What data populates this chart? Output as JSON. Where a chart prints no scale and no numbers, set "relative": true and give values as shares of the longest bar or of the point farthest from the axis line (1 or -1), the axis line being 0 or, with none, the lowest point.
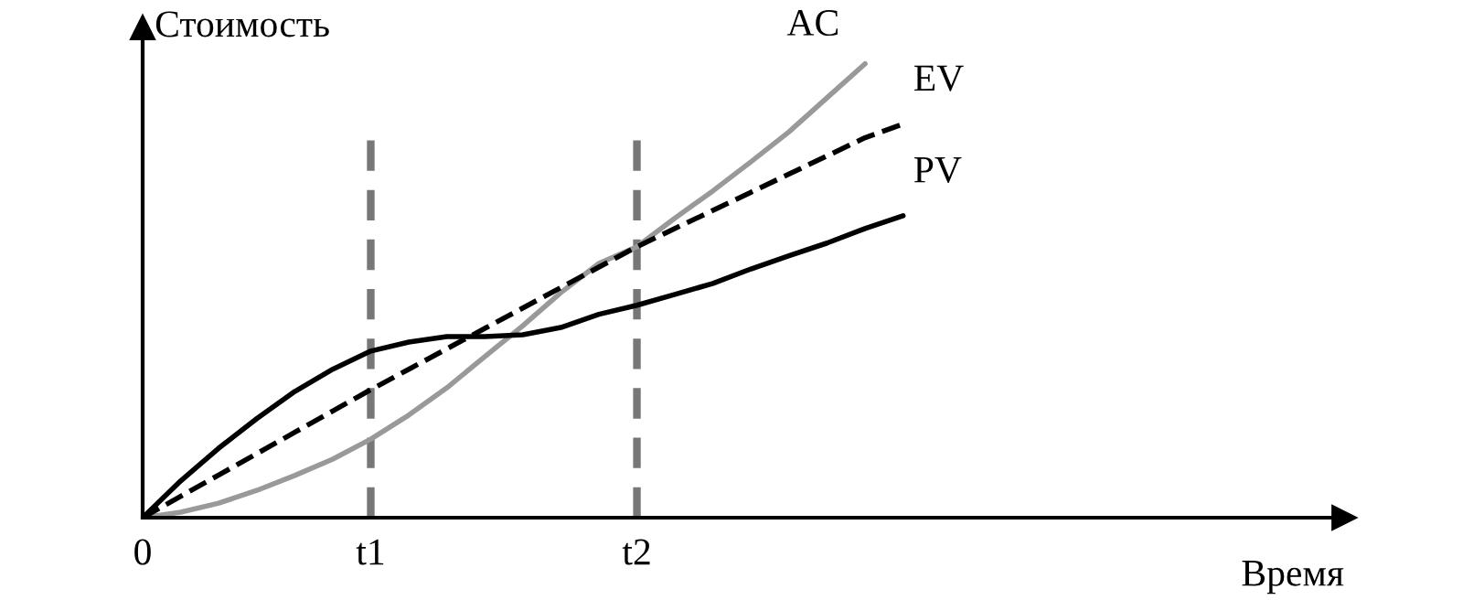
{
  "chart_data": {
    "type": "line",
    "relative": true,
    "xlabel": "Время",
    "ylabel": "Стоимость",
    "categories": [
      "0",
      null,
      null,
      null,
      null,
      null,
      "t1",
      null,
      null,
      null,
      null,
      null,
      null,
      "t2",
      null,
      null,
      null,
      null,
      null,
      null,
      null,
      null,
      null,
      null,
      null,
      null,
      null,
      null,
      null,
      null,
      null,
      null
    ],
    "grid": false,
    "legend": false,
    "marker": "none",
    "ref_lines": [
      {
        "axis": "x",
        "value": "t1",
        "color": "#777777",
        "line_style": "dashed"
      },
      {
        "axis": "x",
        "value": "t2",
        "color": "#777777",
        "line_style": "dashed"
      }
    ],
    "series": [
      {
        "name": "AC",
        "color": "#999999",
        "line_style": "solid",
        "values": [
          0,
          0.012,
          0.032,
          0.06,
          0.093,
          0.129,
          0.173,
          0.226,
          0.286,
          0.355,
          0.423,
          0.496,
          0.56,
          0.597,
          0.66,
          0.72,
          0.784,
          0.85,
          0.925,
          1.0,
          null,
          null,
          null,
          null,
          null,
          null,
          null,
          null,
          null,
          null,
          null,
          null
        ]
      },
      {
        "name": "EV",
        "color": "#000000",
        "line_style": "dashed",
        "values": [
          0,
          0.047,
          0.094,
          0.141,
          0.188,
          0.235,
          0.282,
          0.327,
          0.372,
          0.417,
          0.462,
          0.507,
          0.552,
          0.597,
          0.637,
          0.677,
          0.717,
          0.757,
          0.797,
          0.837,
          0.867,
          null,
          null,
          null,
          null,
          null,
          null,
          null,
          null,
          null,
          null,
          null
        ]
      },
      {
        "name": "PV",
        "color": "#000000",
        "line_style": "solid",
        "values": [
          0,
          0.081,
          0.153,
          0.218,
          0.278,
          0.327,
          0.367,
          0.387,
          0.399,
          0.399,
          0.403,
          0.419,
          0.448,
          0.468,
          0.492,
          0.516,
          0.548,
          0.577,
          0.605,
          0.637,
          0.665,
          null,
          null,
          null,
          null,
          null,
          null,
          null,
          null,
          null,
          null,
          null
        ]
      }
    ]
  }
}
